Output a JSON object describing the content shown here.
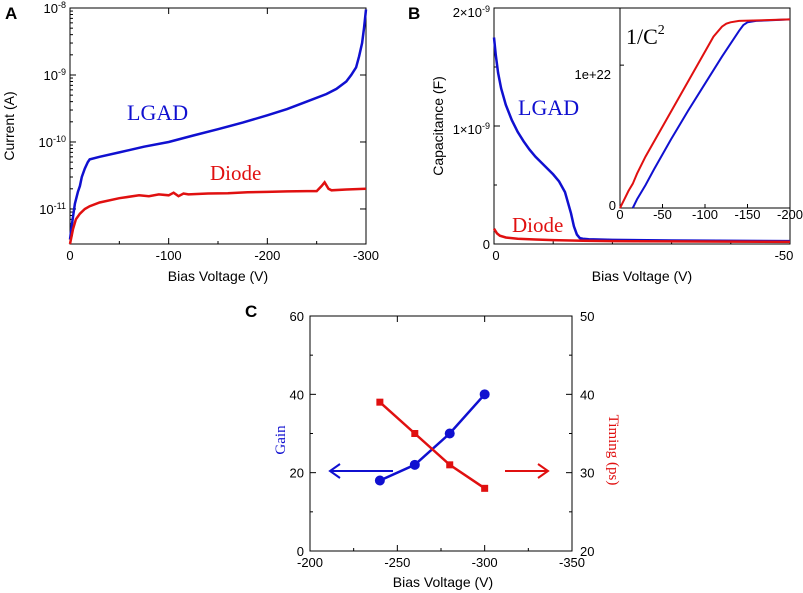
{
  "colors": {
    "blue": "#1010d0",
    "red": "#e01010"
  },
  "chart_data": [
    {
      "panel": "A",
      "type": "line",
      "xlabel": "Bias Voltage (V)",
      "ylabel": "Current (A)",
      "xlim": [
        0,
        -300
      ],
      "ylog": true,
      "ylim": [
        3e-12,
        1e-08
      ],
      "xticks": [
        "0",
        "-100",
        "-200",
        "-300"
      ],
      "ytick_base": "10",
      "ytick_exps": [
        "-8",
        "-9",
        "-10",
        "-11"
      ],
      "series": [
        {
          "name": "LGAD",
          "color": "blue",
          "x": [
            0,
            -2,
            -5,
            -8,
            -10,
            -12,
            -15,
            -18,
            -20,
            -30,
            -50,
            -75,
            -100,
            -125,
            -150,
            -175,
            -200,
            -220,
            -240,
            -260,
            -270,
            -280,
            -285,
            -290,
            -293,
            -296,
            -298,
            -300
          ],
          "y": [
            3.5e-12,
            6e-12,
            1.2e-11,
            1.8e-11,
            2.2e-11,
            3e-11,
            4e-11,
            5e-11,
            5.5e-11,
            6e-11,
            7e-11,
            8.5e-11,
            1e-10,
            1.25e-10,
            1.55e-10,
            1.95e-10,
            2.5e-10,
            3.1e-10,
            4e-10,
            5.2e-10,
            6.2e-10,
            8e-10,
            1e-09,
            1.3e-09,
            1.9e-09,
            3e-09,
            5e-09,
            9.5e-09
          ]
        },
        {
          "name": "Diode",
          "color": "red",
          "x": [
            0,
            -3,
            -6,
            -10,
            -15,
            -20,
            -30,
            -50,
            -70,
            -80,
            -90,
            -100,
            -105,
            -110,
            -115,
            -120,
            -140,
            -160,
            -180,
            -200,
            -220,
            -240,
            -250,
            -255,
            -258,
            -262,
            -265,
            -280,
            -300
          ],
          "y": [
            3e-12,
            5e-12,
            7e-12,
            8.5e-12,
            1e-11,
            1.1e-11,
            1.25e-11,
            1.45e-11,
            1.6e-11,
            1.55e-11,
            1.65e-11,
            1.6e-11,
            1.75e-11,
            1.55e-11,
            1.7e-11,
            1.65e-11,
            1.7e-11,
            1.72e-11,
            1.78e-11,
            1.8e-11,
            1.83e-11,
            1.85e-11,
            1.85e-11,
            2.2e-11,
            2.5e-11,
            2e-11,
            1.9e-11,
            1.95e-11,
            2e-11
          ]
        }
      ],
      "annotations": [
        {
          "text": "LGAD",
          "color": "blue"
        },
        {
          "text": "Diode",
          "color": "red"
        }
      ]
    },
    {
      "panel": "B",
      "type": "line",
      "xlabel": "Bias Voltage (V)",
      "ylabel": "Capacitance (F)",
      "xlim": [
        0,
        -50
      ],
      "ylim": [
        0,
        2e-09
      ],
      "xticks": [
        "0",
        "-50"
      ],
      "yticks": [
        {
          "base": "2×10",
          "exp": "-9"
        },
        {
          "base": "1×10",
          "exp": "-9"
        },
        {
          "base": "0",
          "exp": ""
        }
      ],
      "series": [
        {
          "name": "LGAD",
          "color": "blue",
          "x": [
            0,
            -0.3,
            -0.7,
            -1.2,
            -2,
            -3,
            -4,
            -5,
            -6,
            -7,
            -8,
            -9,
            -10,
            -11,
            -12,
            -13,
            -13.5,
            -14,
            -14.5,
            -15,
            -16,
            -20,
            -30,
            -50
          ],
          "y": [
            1.75e-09,
            1.6e-09,
            1.45e-09,
            1.32e-09,
            1.18e-09,
            1.05e-09,
            9.5e-10,
            8.7e-10,
            8e-10,
            7.4e-10,
            6.9e-10,
            6.4e-10,
            5.9e-10,
            5.3e-10,
            4.4e-10,
            2.6e-10,
            1.5e-10,
            8e-11,
            5e-11,
            4.5e-11,
            4e-11,
            3.5e-11,
            3e-11,
            2.5e-11
          ]
        },
        {
          "name": "Diode",
          "color": "red",
          "x": [
            0,
            -0.5,
            -1,
            -2,
            -4,
            -7,
            -10,
            -15,
            -20,
            -30,
            -40,
            -50
          ],
          "y": [
            1.3e-10,
            9e-11,
            7e-11,
            5.5e-11,
            4.5e-11,
            3.8e-11,
            3.3e-11,
            2.8e-11,
            2.5e-11,
            2.2e-11,
            2e-11,
            1.8e-11
          ]
        }
      ],
      "annotations": [
        {
          "text": "LGAD",
          "color": "blue"
        },
        {
          "text": "Diode",
          "color": "red"
        }
      ],
      "inset": {
        "title_base": "1/C",
        "title_exp": "2",
        "ytick": "1e+22",
        "xlim": [
          0,
          -200
        ],
        "xticks": [
          "0",
          "-50",
          "-100",
          "-150",
          "-200"
        ],
        "yticks_left": [
          "0"
        ],
        "series": [
          {
            "name": "LGAD",
            "color": "blue",
            "x": [
              -15,
              -20,
              -30,
              -40,
              -60,
              -80,
              -100,
              -120,
              -140,
              -145,
              -150,
              -160,
              -200
            ],
            "y": [
              0,
              0.06,
              0.16,
              0.27,
              0.48,
              0.68,
              0.87,
              1.06,
              1.24,
              1.28,
              1.3,
              1.31,
              1.32
            ]
          },
          {
            "name": "Diode",
            "color": "red",
            "x": [
              0,
              -5,
              -10,
              -15,
              -20,
              -30,
              -50,
              -70,
              -90,
              -110,
              -120,
              -125,
              -130,
              -140,
              -200
            ],
            "y": [
              0,
              0.06,
              0.12,
              0.17,
              0.24,
              0.36,
              0.57,
              0.78,
              0.99,
              1.2,
              1.27,
              1.29,
              1.3,
              1.31,
              1.32
            ]
          }
        ]
      }
    },
    {
      "panel": "C",
      "type": "line",
      "xlabel": "Bias Voltage (V)",
      "ylabel_left": "Gain",
      "ylabel_right": "Timing (ps)",
      "xlim": [
        -200,
        -350
      ],
      "ylim_left": [
        0,
        60
      ],
      "ylim_right": [
        20,
        50
      ],
      "xticks": [
        "-200",
        "-250",
        "-300",
        "-350"
      ],
      "yticks_left": [
        "0",
        "20",
        "40",
        "60"
      ],
      "yticks_right": [
        "20",
        "30",
        "40",
        "50"
      ],
      "series": [
        {
          "name": "Gain",
          "color": "blue",
          "axis": "left",
          "marker": "circle",
          "x": [
            -240,
            -260,
            -280,
            -300
          ],
          "y": [
            18,
            22,
            30,
            40
          ]
        },
        {
          "name": "Timing",
          "color": "red",
          "axis": "right",
          "marker": "square",
          "x": [
            -240,
            -260,
            -280,
            -300
          ],
          "y": [
            39,
            35,
            31,
            28
          ]
        }
      ]
    }
  ]
}
